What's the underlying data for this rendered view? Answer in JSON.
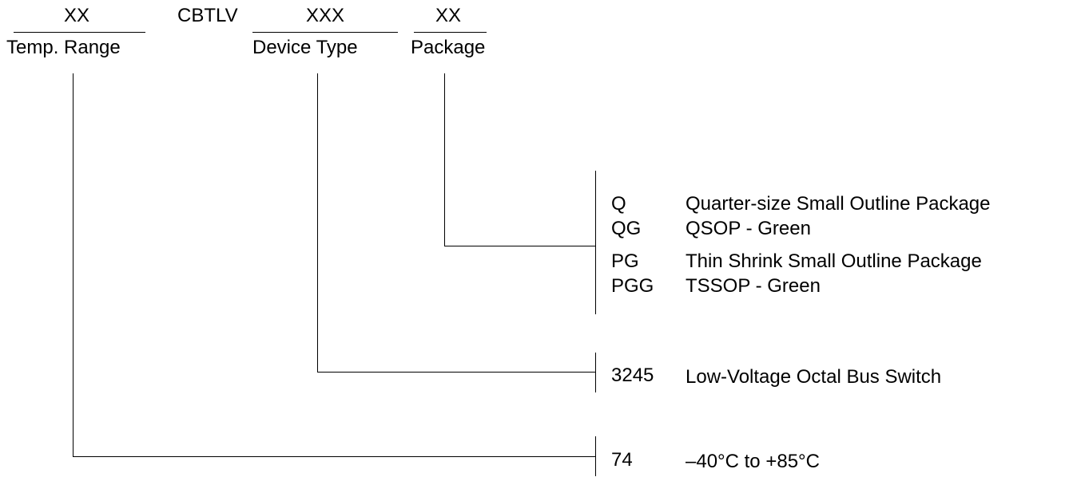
{
  "header": {
    "temp_field": {
      "placeholder": "XX",
      "label": "Temp. Range"
    },
    "prefix": "CBTLV",
    "device_field": {
      "placeholder": "XXX",
      "label": "Device Type"
    },
    "package_field": {
      "placeholder": "XX",
      "label": "Package"
    }
  },
  "package_options": [
    {
      "code": "Q",
      "description": "Quarter-size Small Outline Package"
    },
    {
      "code": "QG",
      "description": "QSOP - Green"
    },
    {
      "code": "PG",
      "description": "Thin Shrink Small Outline Package"
    },
    {
      "code": "PGG",
      "description": "TSSOP - Green"
    }
  ],
  "device_options": [
    {
      "code": "3245",
      "description": "Low-Voltage Octal Bus Switch"
    }
  ],
  "temp_options": [
    {
      "code": "74",
      "description": "–40°C to +85°C"
    }
  ]
}
